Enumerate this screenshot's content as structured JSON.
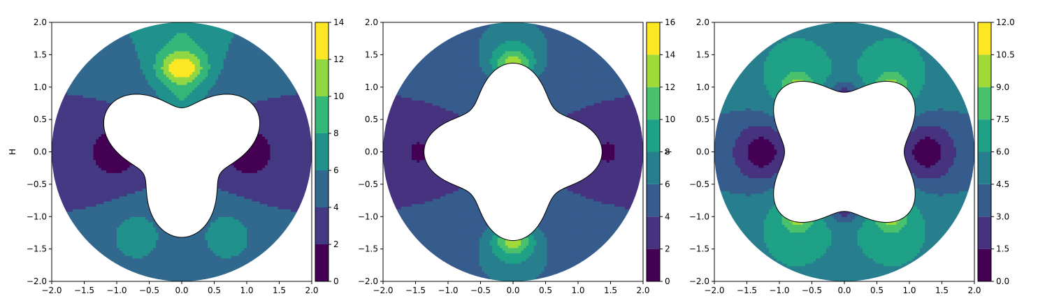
{
  "figure": {
    "panel_count": 3
  },
  "chart_data": [
    {
      "type": "heatmap",
      "subtype": "filled-contour",
      "domain_shape": "annulus: outer circle radius 2, inner 3-lobed flower cut-out",
      "ylabel": "H",
      "xlabel": "",
      "xlim": [
        -2.0,
        2.0
      ],
      "ylim": [
        -2.0,
        2.0
      ],
      "xticks": [
        "−2.0",
        "−1.5",
        "−1.0",
        "−0.5",
        "0.0",
        "0.5",
        "1.0",
        "1.5",
        "2.0"
      ],
      "yticks": [
        "−2.0",
        "−1.5",
        "−1.0",
        "−0.5",
        "0.0",
        "0.5",
        "1.0",
        "1.5",
        "2.0"
      ],
      "colorbar": {
        "levels": [
          0,
          2,
          4,
          6,
          8,
          10,
          12,
          14
        ],
        "ticks": [
          "0",
          "2",
          "4",
          "6",
          "8",
          "10",
          "12",
          "14"
        ],
        "colors": [
          "#440154",
          "#443983",
          "#31688e",
          "#21918c",
          "#35b779",
          "#90d743",
          "#fde725"
        ]
      },
      "regions": [
        {
          "level_band": 0,
          "value_range": [
            0,
            2
          ],
          "approx_value": 1,
          "location": "lobes near (±1.0, 0.0)"
        },
        {
          "level_band": 1,
          "value_range": [
            2,
            4
          ],
          "approx_value": 3,
          "location": "side bands, |x| > 0.9, -0.8 < y < 1.1"
        },
        {
          "level_band": 2,
          "value_range": [
            4,
            6
          ],
          "approx_value": 5,
          "location": "outer annulus background"
        },
        {
          "level_band": 3,
          "value_range": [
            6,
            8
          ],
          "approx_value": 7,
          "location": "top (0, 1.8) and bottom lobes (±0.7, -1.3)"
        },
        {
          "level_band": 4,
          "value_range": [
            8,
            10
          ],
          "approx_value": 9,
          "location": "near (0, 1.5)"
        },
        {
          "level_band": 5,
          "value_range": [
            10,
            12
          ],
          "approx_value": 11,
          "location": "near (0, 1.35)"
        }
      ]
    },
    {
      "type": "heatmap",
      "subtype": "filled-contour",
      "domain_shape": "annulus: outer circle radius 2, inner 4-lobed cross cut-out (axis-aligned)",
      "ylabel": "",
      "colorbar_label": "γ",
      "xlabel": "",
      "xlim": [
        -2.0,
        2.0
      ],
      "ylim": [
        -2.0,
        2.0
      ],
      "xticks": [
        "−2.0",
        "−1.5",
        "−1.0",
        "−0.5",
        "0.0",
        "0.5",
        "1.0",
        "1.5",
        "2.0"
      ],
      "yticks": [
        "−2.0",
        "−1.5",
        "−1.0",
        "−0.5",
        "0.0",
        "0.5",
        "1.0",
        "1.5",
        "2.0"
      ],
      "colorbar": {
        "levels": [
          0,
          2,
          4,
          6,
          8,
          10,
          12,
          14,
          16
        ],
        "ticks": [
          "0",
          "2",
          "4",
          "6",
          "8",
          "10",
          "12",
          "14",
          "16"
        ],
        "colors": [
          "#440154",
          "#46327e",
          "#365c8d",
          "#277f8e",
          "#1fa187",
          "#4ac16d",
          "#a0da39",
          "#fde725"
        ]
      },
      "regions": [
        {
          "level_band": 0,
          "value_range": [
            0,
            2
          ],
          "approx_value": 1,
          "location": "small lobes near (±1.45, 0.0) and (±0.6, ±0.5)"
        },
        {
          "level_band": 1,
          "value_range": [
            2,
            4
          ],
          "approx_value": 3,
          "location": "side bands |x| > 0.8, -1.0 < y < 1.0"
        },
        {
          "level_band": 2,
          "value_range": [
            4,
            6
          ],
          "approx_value": 5,
          "location": "outer annulus background"
        },
        {
          "level_band": 3,
          "value_range": [
            6,
            8
          ],
          "approx_value": 7,
          "location": "top and bottom lobes around (0, ±1.7)"
        },
        {
          "level_band": 4,
          "value_range": [
            8,
            10
          ],
          "approx_value": 9,
          "location": "near (0, ±1.45)"
        },
        {
          "level_band": 5,
          "value_range": [
            10,
            12
          ],
          "approx_value": 11,
          "location": "near (0, ±1.38)"
        }
      ]
    },
    {
      "type": "heatmap",
      "subtype": "filled-contour",
      "domain_shape": "annulus: outer circle radius 2, inner 4-lobed X cut-out (diagonal)",
      "ylabel": "",
      "xlabel": "",
      "xlim": [
        -2.0,
        2.0
      ],
      "ylim": [
        -2.0,
        2.0
      ],
      "xticks": [
        "−2.0",
        "−1.5",
        "−1.0",
        "−0.5",
        "0.0",
        "0.5",
        "1.0",
        "1.5",
        "2.0"
      ],
      "yticks": [
        "−2.0",
        "−1.5",
        "−1.0",
        "−0.5",
        "0.0",
        "0.5",
        "1.0",
        "1.5",
        "2.0"
      ],
      "colorbar": {
        "levels": [
          0.0,
          1.5,
          3.0,
          4.5,
          6.0,
          7.5,
          9.0,
          10.5,
          12.0
        ],
        "ticks": [
          "0.0",
          "1.5",
          "3.0",
          "4.5",
          "6.0",
          "7.5",
          "9.0",
          "10.5",
          "12.0"
        ],
        "colors": [
          "#440154",
          "#46327e",
          "#365c8d",
          "#277f8e",
          "#1fa187",
          "#4ac16d",
          "#a0da39",
          "#fde725"
        ]
      },
      "regions": [
        {
          "level_band": 0,
          "value_range": [
            0,
            1.5
          ],
          "approx_value": 0.75,
          "location": "side lobes near (±1.2, 0.0)"
        },
        {
          "level_band": 1,
          "value_range": [
            1.5,
            3.0
          ],
          "approx_value": 2.25,
          "location": "side bands |x| > 0.9, and small lobes (0, ±0.9)"
        },
        {
          "level_band": 2,
          "value_range": [
            3.0,
            4.5
          ],
          "approx_value": 3.75,
          "location": "side annulus background"
        },
        {
          "level_band": 3,
          "value_range": [
            4.5,
            6.0
          ],
          "approx_value": 5.25,
          "location": "top and bottom annulus background"
        },
        {
          "level_band": 4,
          "value_range": [
            6.0,
            7.5
          ],
          "approx_value": 6.75,
          "location": "around the four X-lobe tips"
        },
        {
          "level_band": 5,
          "value_range": [
            7.5,
            9.0
          ],
          "approx_value": 8.25,
          "location": "near (±0.75, ±0.95)"
        },
        {
          "level_band": 6,
          "value_range": [
            9.0,
            10.5
          ],
          "approx_value": 9.75,
          "location": "near (±0.72, ±0.92)"
        }
      ]
    }
  ]
}
